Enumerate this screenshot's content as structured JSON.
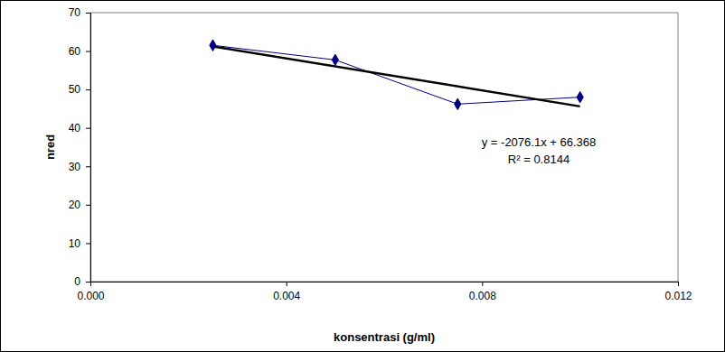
{
  "chart_data": {
    "type": "line",
    "x_label": "konsentrasi (g/ml)",
    "y_label": "nred",
    "series": [
      {
        "color": "#000080",
        "marker": "diamond",
        "line_style": "solid",
        "x": [
          0.0025,
          0.005,
          0.0075,
          0.01
        ],
        "values": [
          61.5,
          57.7,
          46.2,
          48.0
        ]
      },
      {
        "color": "#000000",
        "marker": "none",
        "line_style": "solid",
        "x": [
          0.0025,
          0.01
        ],
        "values": [
          61.2,
          45.6
        ]
      }
    ],
    "annotations": [
      "y = -2076.1x + 66.368",
      "R² = 0.8144"
    ],
    "xlim": [
      0,
      0.012
    ],
    "xticks": [
      {
        "value": 0,
        "label": "0.000"
      },
      {
        "value": 0.004,
        "label": "0.004"
      },
      {
        "value": 0.008,
        "label": "0.008"
      },
      {
        "value": 0.012,
        "label": "0.012"
      }
    ],
    "ylim": [
      0,
      70
    ],
    "yticks": [
      0,
      10,
      20,
      30,
      40,
      50,
      60,
      70
    ],
    "grid": false
  }
}
